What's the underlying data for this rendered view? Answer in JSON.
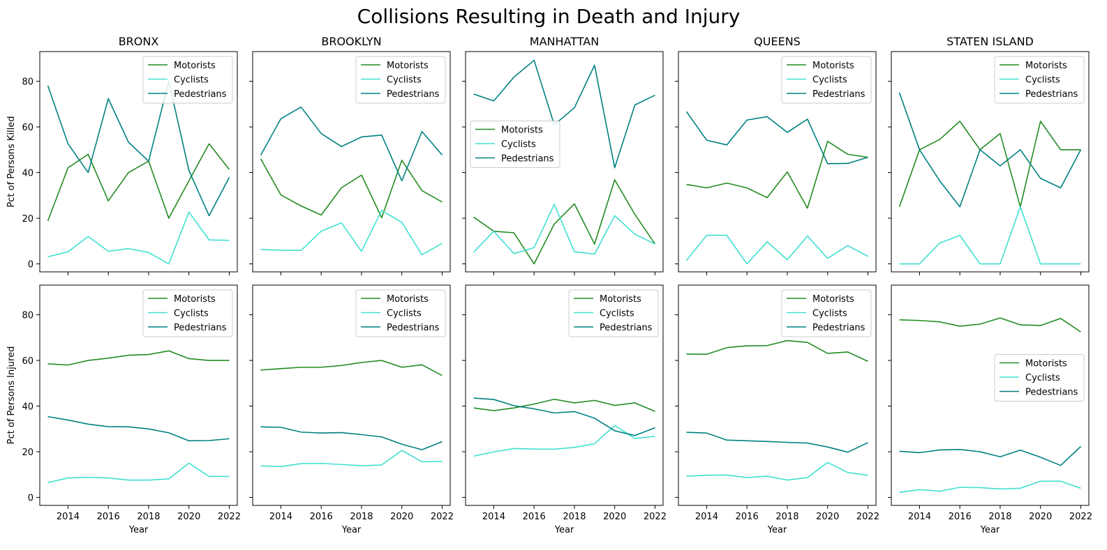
{
  "figure": {
    "title": "Collisions Resulting in Death and Injury"
  },
  "chart_data": {
    "type": "line",
    "x_ticks": [
      2014,
      2016,
      2018,
      2020,
      2022
    ],
    "y_ticks": [
      0,
      20,
      40,
      60,
      80
    ],
    "xlim": [
      2012.6,
      2022.4
    ],
    "ylim": [
      -3.5,
      93
    ],
    "xlabel": "Year",
    "grid": false,
    "series_colors": {
      "Motorists": "#228B22",
      "Cyclists": "#40E0D0",
      "Pedestrians": "#008080"
    },
    "rows": [
      {
        "ylabel": "Pct of Persons Killed"
      },
      {
        "ylabel": "Pct of Persons Injured"
      }
    ],
    "boroughs": [
      "BRONX",
      "BROOKLYN",
      "MANHATTAN",
      "QUEENS",
      "STATEN ISLAND"
    ],
    "x": [
      2013,
      2014,
      2015,
      2016,
      2017,
      2018,
      2019,
      2020,
      2021,
      2022
    ],
    "panels": [
      {
        "row": 0,
        "col": 0,
        "borough": "BRONX",
        "legend": "upper right",
        "series": [
          {
            "name": "Motorists",
            "values": [
              18.8,
              42.1,
              48.0,
              27.6,
              40.0,
              45.0,
              20.0,
              36.4,
              52.6,
              41.4
            ]
          },
          {
            "name": "Cyclists",
            "values": [
              3.1,
              5.3,
              12.0,
              5.5,
              6.7,
              5.0,
              0.0,
              22.7,
              10.5,
              10.3
            ]
          },
          {
            "name": "Pedestrians",
            "values": [
              78.1,
              52.6,
              40.0,
              72.4,
              53.3,
              45.0,
              80.0,
              40.9,
              21.1,
              37.9
            ]
          }
        ]
      },
      {
        "row": 0,
        "col": 1,
        "borough": "BROOKLYN",
        "legend": "upper right",
        "series": [
          {
            "name": "Motorists",
            "values": [
              46.0,
              30.2,
              25.4,
              21.4,
              33.3,
              38.9,
              20.2,
              45.4,
              32.1,
              27.1
            ]
          },
          {
            "name": "Cyclists",
            "values": [
              6.3,
              6.0,
              5.9,
              14.3,
              18.0,
              5.5,
              23.4,
              18.2,
              4.0,
              9.0
            ]
          },
          {
            "name": "Pedestrians",
            "values": [
              47.6,
              63.6,
              68.7,
              57.1,
              51.4,
              55.6,
              56.4,
              36.4,
              58.0,
              47.7
            ]
          }
        ]
      },
      {
        "row": 0,
        "col": 2,
        "borough": "MANHATTAN",
        "legend": "center left",
        "series": [
          {
            "name": "Motorists",
            "values": [
              20.5,
              14.3,
              13.6,
              0.0,
              17.4,
              26.3,
              8.7,
              36.8,
              21.7,
              8.7
            ]
          },
          {
            "name": "Cyclists",
            "values": [
              5.1,
              14.3,
              4.5,
              7.1,
              26.1,
              5.3,
              4.3,
              21.1,
              13.0,
              8.7
            ]
          },
          {
            "name": "Pedestrians",
            "values": [
              74.4,
              71.4,
              81.8,
              89.2,
              60.9,
              68.4,
              87.0,
              42.1,
              69.6,
              73.9
            ]
          }
        ]
      },
      {
        "row": 0,
        "col": 3,
        "borough": "QUEENS",
        "legend": "upper right",
        "series": [
          {
            "name": "Motorists",
            "values": [
              34.8,
              33.3,
              35.4,
              33.3,
              29.0,
              40.3,
              24.4,
              53.7,
              48.0,
              46.7
            ]
          },
          {
            "name": "Cyclists",
            "values": [
              1.5,
              12.5,
              12.5,
              0.0,
              9.7,
              1.8,
              12.2,
              2.4,
              8.0,
              3.3
            ]
          },
          {
            "name": "Pedestrians",
            "values": [
              66.7,
              54.2,
              52.1,
              63.0,
              64.5,
              57.6,
              63.4,
              43.9,
              44.0,
              46.7
            ]
          }
        ]
      },
      {
        "row": 0,
        "col": 4,
        "borough": "STATEN ISLAND",
        "legend": "upper right",
        "series": [
          {
            "name": "Motorists",
            "values": [
              25.0,
              50.0,
              54.5,
              62.5,
              50.0,
              57.1,
              25.0,
              62.5,
              50.0,
              50.0
            ]
          },
          {
            "name": "Cyclists",
            "values": [
              0.0,
              0.0,
              9.1,
              12.5,
              0.0,
              0.0,
              25.0,
              0.0,
              0.0,
              0.0
            ]
          },
          {
            "name": "Pedestrians",
            "values": [
              75.0,
              50.0,
              36.4,
              25.0,
              50.0,
              42.9,
              50.0,
              37.5,
              33.3,
              50.0
            ]
          }
        ]
      },
      {
        "row": 1,
        "col": 0,
        "borough": "BRONX",
        "legend": "upper right",
        "series": [
          {
            "name": "Motorists",
            "values": [
              58.5,
              58.0,
              60.0,
              61.0,
              62.3,
              62.6,
              64.2,
              60.8,
              60.0,
              60.0
            ]
          },
          {
            "name": "Cyclists",
            "values": [
              6.5,
              8.5,
              8.8,
              8.5,
              7.6,
              7.6,
              8.1,
              15.0,
              9.2,
              9.2
            ]
          },
          {
            "name": "Pedestrians",
            "values": [
              35.4,
              33.9,
              32.1,
              31.0,
              30.9,
              30.0,
              28.3,
              24.8,
              24.9,
              25.7
            ]
          }
        ]
      },
      {
        "row": 1,
        "col": 1,
        "borough": "BROOKLYN",
        "legend": "upper right",
        "series": [
          {
            "name": "Motorists",
            "values": [
              55.8,
              56.4,
              57.0,
              57.0,
              57.8,
              59.1,
              60.0,
              57.0,
              58.1,
              53.4
            ]
          },
          {
            "name": "Cyclists",
            "values": [
              13.8,
              13.5,
              14.8,
              14.9,
              14.4,
              13.9,
              14.2,
              20.6,
              15.6,
              15.8
            ]
          },
          {
            "name": "Pedestrians",
            "values": [
              30.9,
              30.7,
              28.6,
              28.2,
              28.4,
              27.5,
              26.5,
              23.3,
              20.9,
              24.4
            ]
          }
        ]
      },
      {
        "row": 1,
        "col": 2,
        "borough": "MANHATTAN",
        "legend": "upper right",
        "series": [
          {
            "name": "Motorists",
            "values": [
              39.2,
              38.0,
              39.2,
              40.9,
              43.0,
              41.4,
              42.5,
              40.3,
              41.4,
              37.7
            ]
          },
          {
            "name": "Cyclists",
            "values": [
              18.1,
              19.9,
              21.4,
              21.2,
              21.1,
              21.9,
              23.5,
              31.5,
              25.8,
              26.8
            ]
          },
          {
            "name": "Pedestrians",
            "values": [
              43.5,
              42.9,
              40.2,
              38.8,
              37.0,
              37.6,
              34.7,
              29.2,
              27.1,
              30.5
            ]
          }
        ]
      },
      {
        "row": 1,
        "col": 3,
        "borough": "QUEENS",
        "legend": "upper right",
        "series": [
          {
            "name": "Motorists",
            "values": [
              62.8,
              62.7,
              65.6,
              66.4,
              66.5,
              68.7,
              67.9,
              63.1,
              63.7,
              59.6
            ]
          },
          {
            "name": "Cyclists",
            "values": [
              9.3,
              9.7,
              9.8,
              8.7,
              9.3,
              7.6,
              8.7,
              15.3,
              10.9,
              9.7
            ]
          },
          {
            "name": "Pedestrians",
            "values": [
              28.5,
              28.2,
              25.1,
              24.8,
              24.5,
              24.1,
              23.8,
              22.1,
              19.8,
              24.0
            ]
          }
        ]
      },
      {
        "row": 1,
        "col": 4,
        "borough": "STATEN ISLAND",
        "legend": "center right",
        "series": [
          {
            "name": "Motorists",
            "values": [
              77.8,
              77.5,
              76.9,
              75.0,
              75.9,
              78.6,
              75.6,
              75.3,
              78.4,
              72.5
            ]
          },
          {
            "name": "Cyclists",
            "values": [
              2.2,
              3.4,
              2.7,
              4.4,
              4.3,
              3.7,
              4.0,
              7.1,
              7.1,
              4.0
            ]
          },
          {
            "name": "Pedestrians",
            "values": [
              20.2,
              19.6,
              20.8,
              21.0,
              20.0,
              17.8,
              20.7,
              17.6,
              14.0,
              22.3
            ]
          }
        ]
      }
    ]
  }
}
